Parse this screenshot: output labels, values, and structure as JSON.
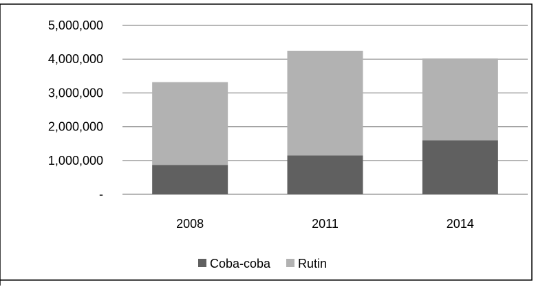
{
  "chart_data": {
    "type": "bar",
    "stacked": true,
    "categories": [
      "2008",
      "2011",
      "2014"
    ],
    "series": [
      {
        "name": "Coba-coba",
        "values": [
          870000,
          1150000,
          1600000
        ],
        "color": "#606060"
      },
      {
        "name": "Rutin",
        "values": [
          2450000,
          3100000,
          2420000
        ],
        "color": "#b2b2b2"
      }
    ],
    "yticks": [
      {
        "value": 0,
        "label": "-"
      },
      {
        "value": 1000000,
        "label": "1,000,000"
      },
      {
        "value": 2000000,
        "label": "2,000,000"
      },
      {
        "value": 3000000,
        "label": "3,000,000"
      },
      {
        "value": 4000000,
        "label": "4,000,000"
      },
      {
        "value": 5000000,
        "label": "5,000,000"
      }
    ],
    "ylim": [
      0,
      5000000
    ],
    "grid": true,
    "legend_position": "bottom",
    "title": "",
    "xlabel": "",
    "ylabel": ""
  }
}
